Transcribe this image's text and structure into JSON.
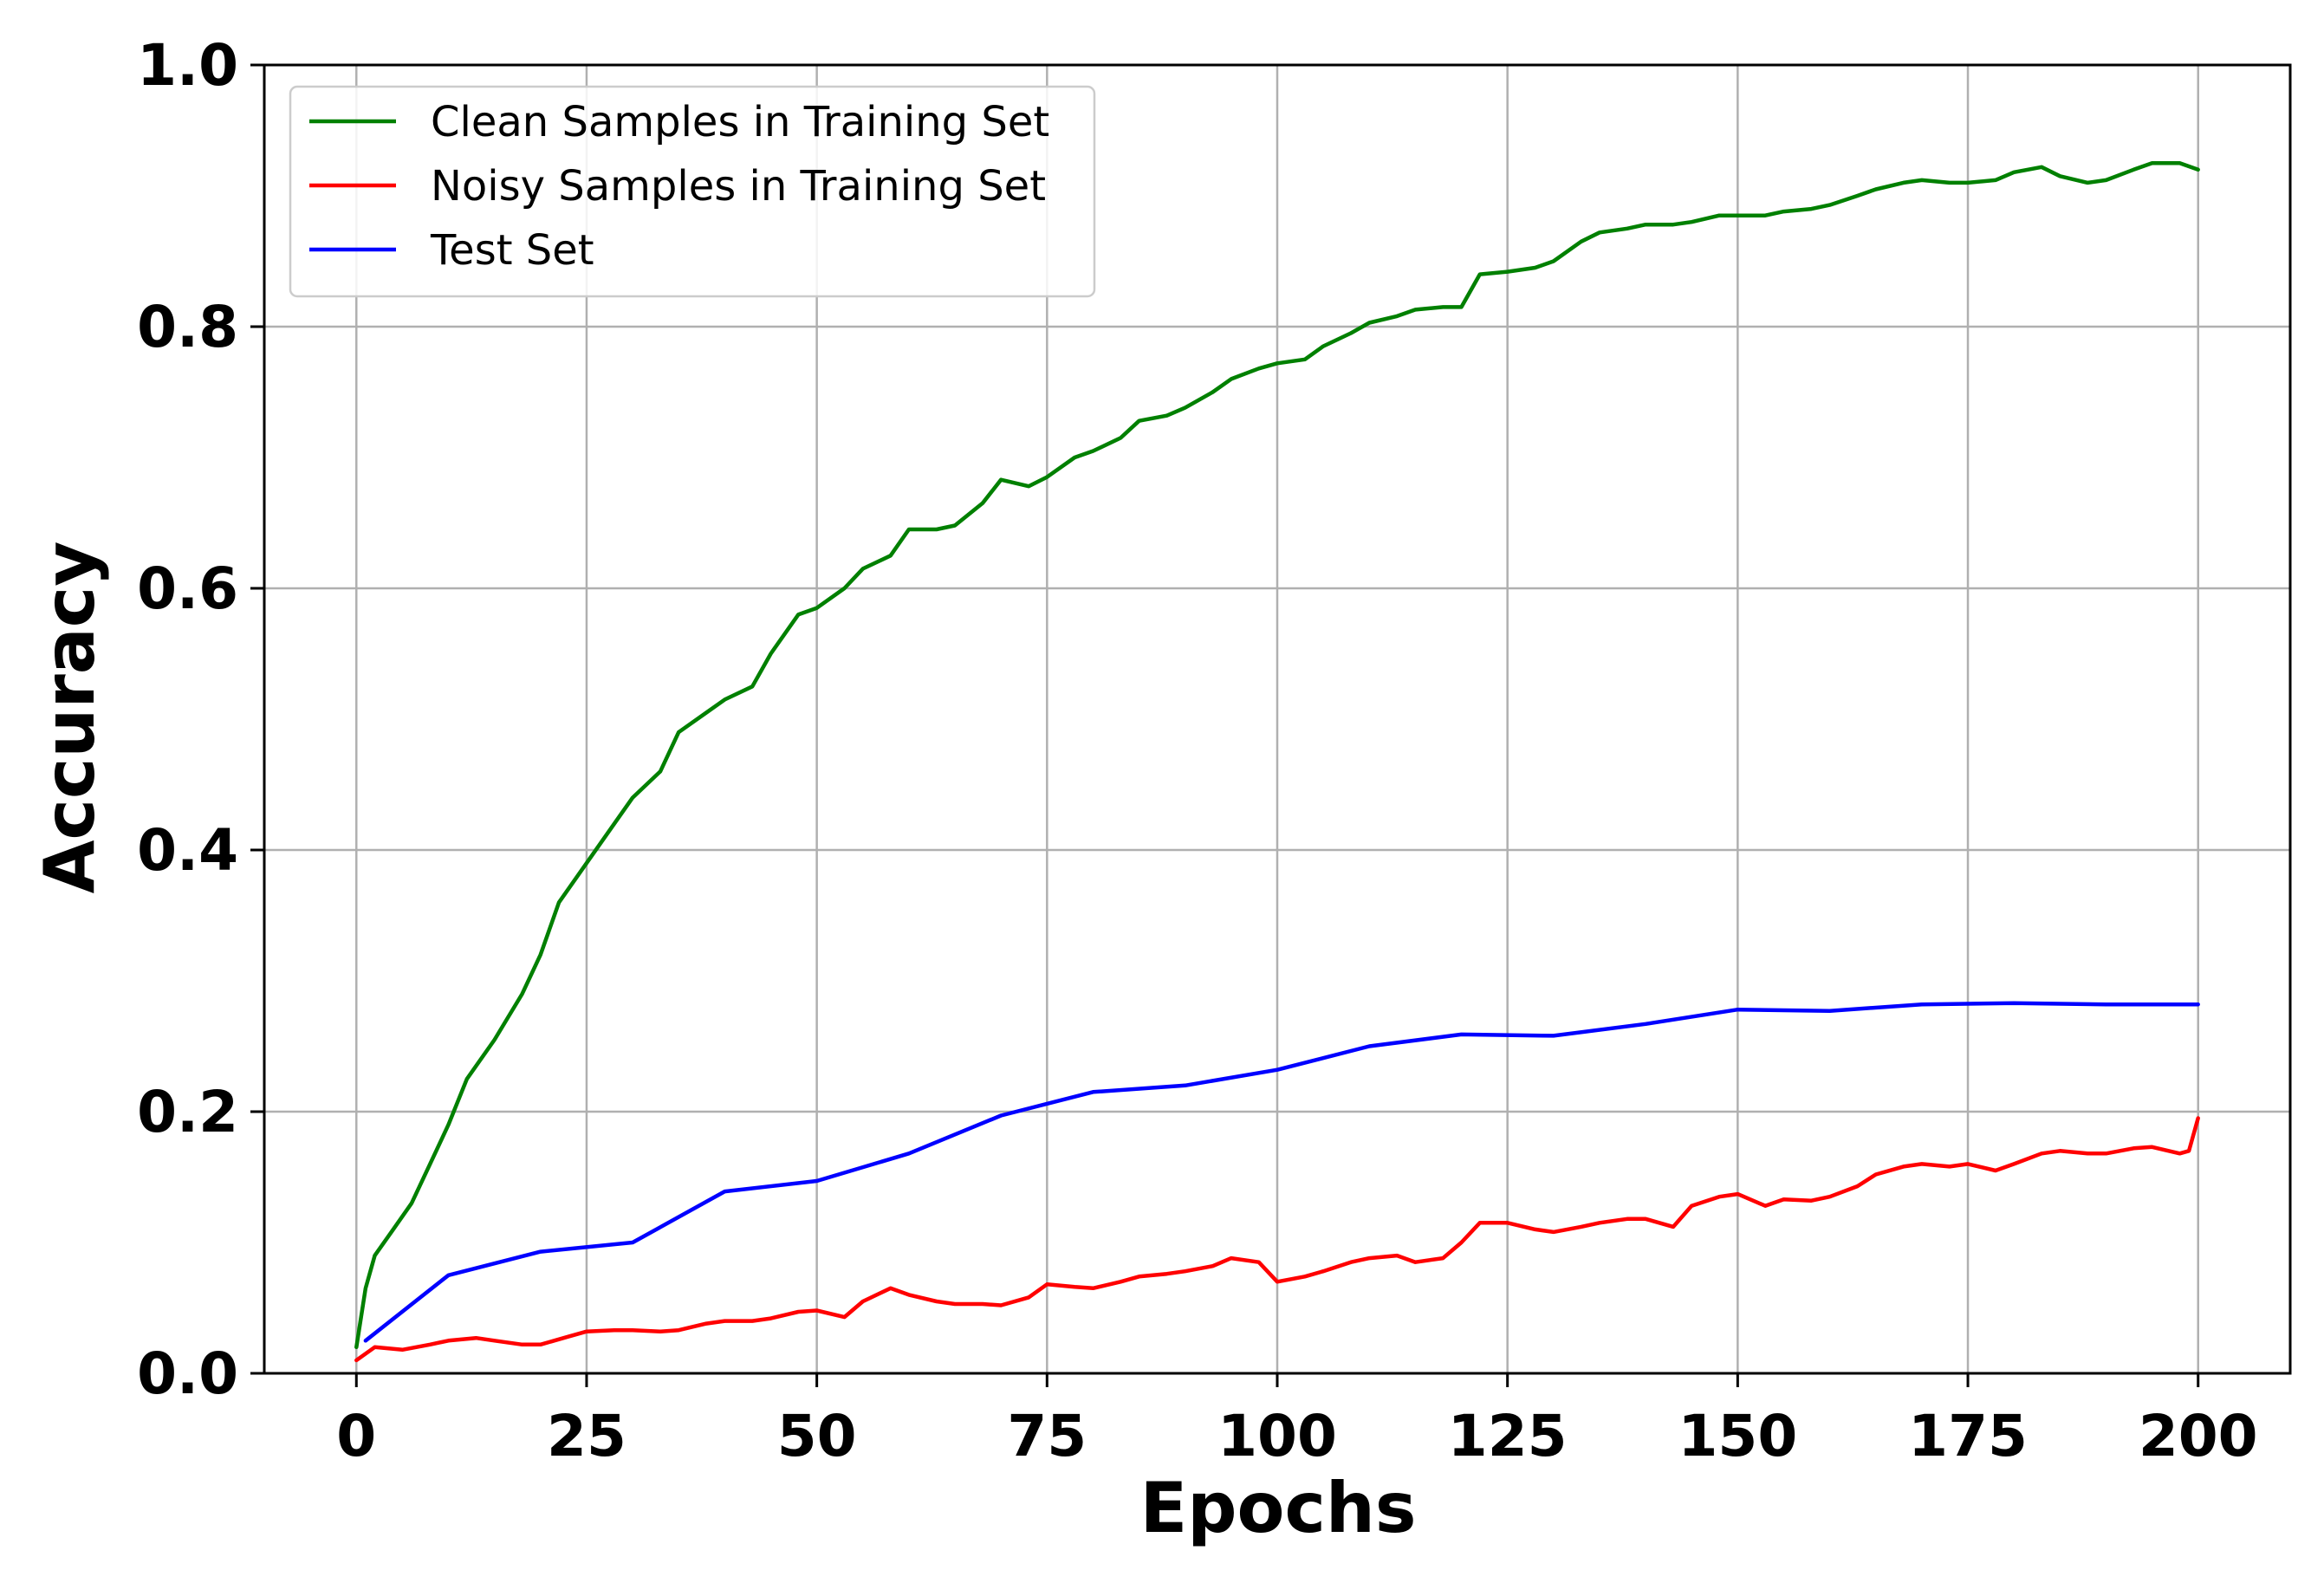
{
  "chart_data": {
    "type": "line",
    "xlabel": "Epochs",
    "ylabel": "Accuracy",
    "xlim": [
      -10,
      210
    ],
    "ylim": [
      0.0,
      1.0
    ],
    "xticks": [
      0,
      25,
      50,
      75,
      100,
      125,
      150,
      175,
      200
    ],
    "xtick_labels": [
      "0",
      "25",
      "50",
      "75",
      "100",
      "125",
      "150",
      "175",
      "200"
    ],
    "yticks": [
      0.0,
      0.2,
      0.4,
      0.6,
      0.8,
      1.0
    ],
    "ytick_labels": [
      "0.0",
      "0.2",
      "0.4",
      "0.6",
      "0.8",
      "1.0"
    ],
    "grid": true,
    "legend_position": "top-left",
    "series": [
      {
        "name": "Clean Samples in Training Set",
        "color": "#008000",
        "x": [
          0,
          1,
          2,
          4,
          6,
          8,
          10,
          12,
          15,
          18,
          20,
          22,
          25,
          28,
          30,
          33,
          35,
          38,
          40,
          43,
          45,
          48,
          50,
          53,
          55,
          58,
          60,
          63,
          65,
          68,
          70,
          73,
          75,
          78,
          80,
          83,
          85,
          88,
          90,
          93,
          95,
          98,
          100,
          103,
          105,
          108,
          110,
          113,
          115,
          118,
          120,
          122,
          125,
          128,
          130,
          133,
          135,
          138,
          140,
          143,
          145,
          148,
          150,
          153,
          155,
          158,
          160,
          163,
          165,
          168,
          170,
          173,
          175,
          178,
          180,
          183,
          185,
          188,
          190,
          193,
          195,
          198,
          200
        ],
        "y": [
          0.02,
          0.065,
          0.09,
          0.11,
          0.13,
          0.16,
          0.19,
          0.225,
          0.255,
          0.29,
          0.32,
          0.36,
          0.39,
          0.42,
          0.44,
          0.46,
          0.49,
          0.505,
          0.515,
          0.525,
          0.55,
          0.58,
          0.585,
          0.6,
          0.615,
          0.625,
          0.645,
          0.645,
          0.648,
          0.665,
          0.683,
          0.678,
          0.685,
          0.7,
          0.705,
          0.715,
          0.728,
          0.732,
          0.738,
          0.75,
          0.76,
          0.768,
          0.772,
          0.775,
          0.785,
          0.795,
          0.803,
          0.808,
          0.813,
          0.815,
          0.815,
          0.84,
          0.842,
          0.845,
          0.85,
          0.865,
          0.872,
          0.875,
          0.878,
          0.878,
          0.88,
          0.885,
          0.885,
          0.885,
          0.888,
          0.89,
          0.893,
          0.9,
          0.905,
          0.91,
          0.912,
          0.91,
          0.91,
          0.912,
          0.918,
          0.922,
          0.915,
          0.91,
          0.912,
          0.92,
          0.925,
          0.925,
          0.92
        ]
      },
      {
        "name": "Noisy Samples in Training Set",
        "color": "#ff0000",
        "x": [
          0,
          2,
          5,
          8,
          10,
          13,
          15,
          18,
          20,
          23,
          25,
          28,
          30,
          33,
          35,
          38,
          40,
          43,
          45,
          48,
          50,
          53,
          55,
          58,
          60,
          63,
          65,
          68,
          70,
          73,
          75,
          78,
          80,
          83,
          85,
          88,
          90,
          93,
          95,
          98,
          100,
          103,
          105,
          108,
          110,
          113,
          115,
          118,
          120,
          122,
          125,
          128,
          130,
          133,
          135,
          138,
          140,
          143,
          145,
          148,
          150,
          153,
          155,
          158,
          160,
          163,
          165,
          168,
          170,
          173,
          175,
          178,
          180,
          183,
          185,
          188,
          190,
          193,
          195,
          198,
          199,
          200
        ],
        "y": [
          0.01,
          0.02,
          0.018,
          0.022,
          0.025,
          0.027,
          0.025,
          0.022,
          0.022,
          0.028,
          0.032,
          0.033,
          0.033,
          0.032,
          0.033,
          0.038,
          0.04,
          0.04,
          0.042,
          0.047,
          0.048,
          0.043,
          0.055,
          0.065,
          0.06,
          0.055,
          0.053,
          0.053,
          0.052,
          0.058,
          0.068,
          0.066,
          0.065,
          0.07,
          0.074,
          0.076,
          0.078,
          0.082,
          0.088,
          0.085,
          0.07,
          0.074,
          0.078,
          0.085,
          0.088,
          0.09,
          0.085,
          0.088,
          0.1,
          0.115,
          0.115,
          0.11,
          0.108,
          0.112,
          0.115,
          0.118,
          0.118,
          0.112,
          0.128,
          0.135,
          0.137,
          0.128,
          0.133,
          0.132,
          0.135,
          0.143,
          0.152,
          0.158,
          0.16,
          0.158,
          0.16,
          0.155,
          0.16,
          0.168,
          0.17,
          0.168,
          0.168,
          0.172,
          0.173,
          0.168,
          0.17,
          0.195
        ]
      },
      {
        "name": "Test Set",
        "color": "#0000ff",
        "x": [
          1,
          10,
          20,
          30,
          40,
          50,
          60,
          70,
          80,
          90,
          100,
          110,
          120,
          130,
          140,
          150,
          160,
          170,
          180,
          190,
          200
        ],
        "y": [
          0.025,
          0.075,
          0.093,
          0.1,
          0.139,
          0.147,
          0.168,
          0.197,
          0.215,
          0.22,
          0.232,
          0.25,
          0.259,
          0.258,
          0.267,
          0.278,
          0.277,
          0.282,
          0.283,
          0.282,
          0.282
        ]
      }
    ]
  }
}
